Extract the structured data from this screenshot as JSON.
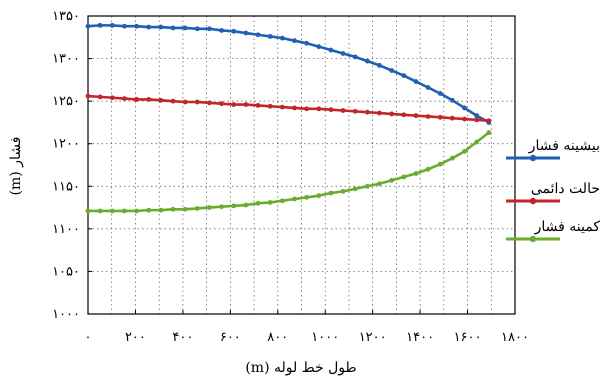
{
  "chart_data": {
    "type": "line",
    "title": "",
    "xlabel": "طول خط لوله (m)",
    "ylabel": "فشار (m)",
    "xlim": [
      0,
      1800
    ],
    "ylim": [
      1000,
      1350
    ],
    "x_tick_labels": [
      "۰",
      "۲۰۰",
      "۴۰۰",
      "۶۰۰",
      "۸۰۰",
      "۱۰۰۰",
      "۱۲۰۰",
      "۱۴۰۰",
      "۱۶۰۰",
      "۱۸۰۰"
    ],
    "y_tick_labels": [
      "۱۰۰۰",
      "۱۰۵۰",
      "۱۱۰۰",
      "۱۱۵۰",
      "۱۲۰۰",
      "۱۲۵۰",
      "۱۳۰۰",
      "۱۳۵۰"
    ],
    "grid": true,
    "legend_position": "right",
    "x": [
      0,
      51.2,
      102.4,
      153.6,
      204.8,
      256,
      307.2,
      358.4,
      409.6,
      460.8,
      512,
      563.2,
      614.4,
      665.6,
      716.8,
      768,
      819.2,
      870.4,
      921.6,
      972.8,
      1024,
      1075.2,
      1126.4,
      1177.6,
      1228.8,
      1280,
      1331.2,
      1382.4,
      1433.6,
      1484.8,
      1536,
      1587.2,
      1638.4,
      1689.6
    ],
    "series": [
      {
        "name": "بیشینه فشار",
        "color": "#1f5fb4",
        "values": [
          1338,
          1339,
          1339,
          1338,
          1338,
          1337,
          1337,
          1336,
          1336,
          1335,
          1335,
          1333,
          1332,
          1330,
          1328,
          1326,
          1324,
          1321,
          1318,
          1314,
          1310,
          1306,
          1302,
          1297,
          1292,
          1286,
          1280,
          1273,
          1266,
          1259,
          1251,
          1242,
          1233,
          1225
        ]
      },
      {
        "name": "حالت دائمی",
        "color": "#c0262b",
        "values": [
          1256,
          1255,
          1254,
          1253,
          1252,
          1252,
          1251,
          1250,
          1249,
          1249,
          1248,
          1247,
          1246,
          1246,
          1245,
          1244,
          1243,
          1242,
          1241,
          1241,
          1240,
          1239,
          1238,
          1237,
          1236,
          1235,
          1234,
          1233,
          1232,
          1231,
          1230,
          1229,
          1228,
          1227
        ]
      },
      {
        "name": "کمینه فشار",
        "color": "#6aac2c",
        "values": [
          1121,
          1121,
          1121,
          1121,
          1121,
          1122,
          1122,
          1123,
          1123,
          1124,
          1125,
          1126,
          1127,
          1128,
          1130,
          1131,
          1133,
          1135,
          1137,
          1139,
          1142,
          1144,
          1147,
          1150,
          1153,
          1157,
          1161,
          1165,
          1170,
          1176,
          1183,
          1191,
          1202,
          1213
        ]
      }
    ]
  }
}
